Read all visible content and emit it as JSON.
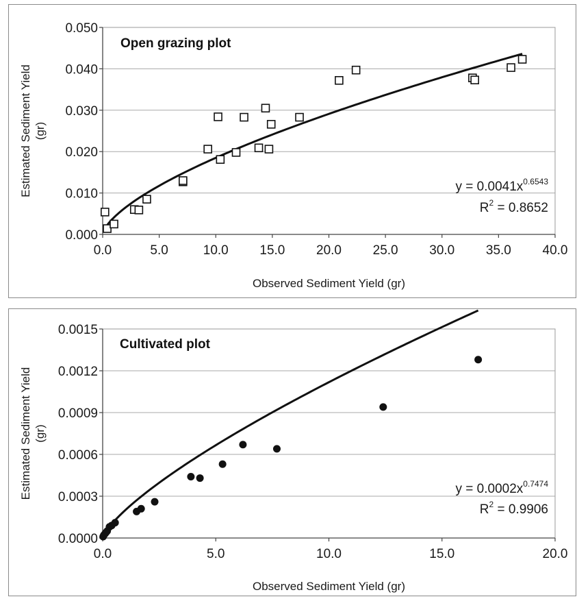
{
  "chart_data": [
    {
      "type": "scatter",
      "title": "Open grazing plot",
      "xlabel": "Observed Sediment Yield (gr)",
      "ylabel_lines": [
        "Estimated Sediment Yield",
        "(gr)"
      ],
      "xlim": [
        0,
        40
      ],
      "ylim": [
        0,
        0.05
      ],
      "x_ticks": [
        "0.0",
        "5.0",
        "10.0",
        "15.0",
        "20.0",
        "25.0",
        "30.0",
        "35.0",
        "40.0"
      ],
      "y_ticks": [
        "0.000",
        "0.010",
        "0.020",
        "0.030",
        "0.040",
        "0.050"
      ],
      "grid": "horizontal",
      "marker": "open-square",
      "points": [
        [
          0.2,
          0.0054
        ],
        [
          0.4,
          0.0014
        ],
        [
          1.0,
          0.0025
        ],
        [
          2.8,
          0.006
        ],
        [
          3.2,
          0.0059
        ],
        [
          3.9,
          0.0085
        ],
        [
          7.1,
          0.0127
        ],
        [
          7.1,
          0.013
        ],
        [
          9.3,
          0.0206
        ],
        [
          10.2,
          0.0284
        ],
        [
          10.4,
          0.0181
        ],
        [
          12.5,
          0.0283
        ],
        [
          11.8,
          0.0198
        ],
        [
          13.8,
          0.0209
        ],
        [
          14.4,
          0.0305
        ],
        [
          14.7,
          0.0206
        ],
        [
          14.9,
          0.0266
        ],
        [
          17.4,
          0.0283
        ],
        [
          20.9,
          0.0372
        ],
        [
          22.4,
          0.0397
        ],
        [
          32.7,
          0.0378
        ],
        [
          32.9,
          0.0373
        ],
        [
          36.1,
          0.0403
        ],
        [
          37.1,
          0.0423
        ]
      ],
      "trendline": {
        "type": "power",
        "a": 0.0041,
        "b": 0.6543,
        "x_start": 0.2,
        "x_end": 37.1
      },
      "equation": {
        "prefix": "y = 0.0041x",
        "exponent": "0.6543",
        "r2_prefix": "R",
        "r2_sup": "2",
        "r2_value": " = 0.8652"
      }
    },
    {
      "type": "scatter",
      "title": "Cultivated plot",
      "xlabel": "Observed Sediment Yield (gr)",
      "ylabel_lines": [
        "Estimated Sediment Yield",
        "(gr)"
      ],
      "xlim": [
        0,
        20
      ],
      "ylim": [
        0,
        0.0015
      ],
      "x_ticks": [
        "0.0",
        "5.0",
        "10.0",
        "15.0",
        "20.0"
      ],
      "y_ticks": [
        "0.0000",
        "0.0003",
        "0.0006",
        "0.0009",
        "0.0012",
        "0.0015"
      ],
      "grid": "horizontal",
      "marker": "filled-circle",
      "points": [
        [
          0.02,
          1e-05
        ],
        [
          0.05,
          2e-05
        ],
        [
          0.1,
          3e-05
        ],
        [
          0.15,
          4e-05
        ],
        [
          0.2,
          5e-05
        ],
        [
          0.3,
          8e-05
        ],
        [
          0.4,
          9e-05
        ],
        [
          0.55,
          0.00011
        ],
        [
          1.5,
          0.00019
        ],
        [
          1.7,
          0.00021
        ],
        [
          2.3,
          0.00026
        ],
        [
          3.9,
          0.00044
        ],
        [
          4.3,
          0.00043
        ],
        [
          5.3,
          0.00053
        ],
        [
          6.2,
          0.00067
        ],
        [
          7.7,
          0.00064
        ],
        [
          12.4,
          0.00094
        ],
        [
          16.6,
          0.00128
        ]
      ],
      "trendline": {
        "type": "power",
        "a": 0.0002,
        "b": 0.7474,
        "x_start": 0.05,
        "x_end": 16.6
      },
      "equation": {
        "prefix": "y = 0.0002x",
        "exponent": "0.7474",
        "r2_prefix": "R",
        "r2_sup": "2",
        "r2_value": " = 0.9906"
      }
    }
  ]
}
